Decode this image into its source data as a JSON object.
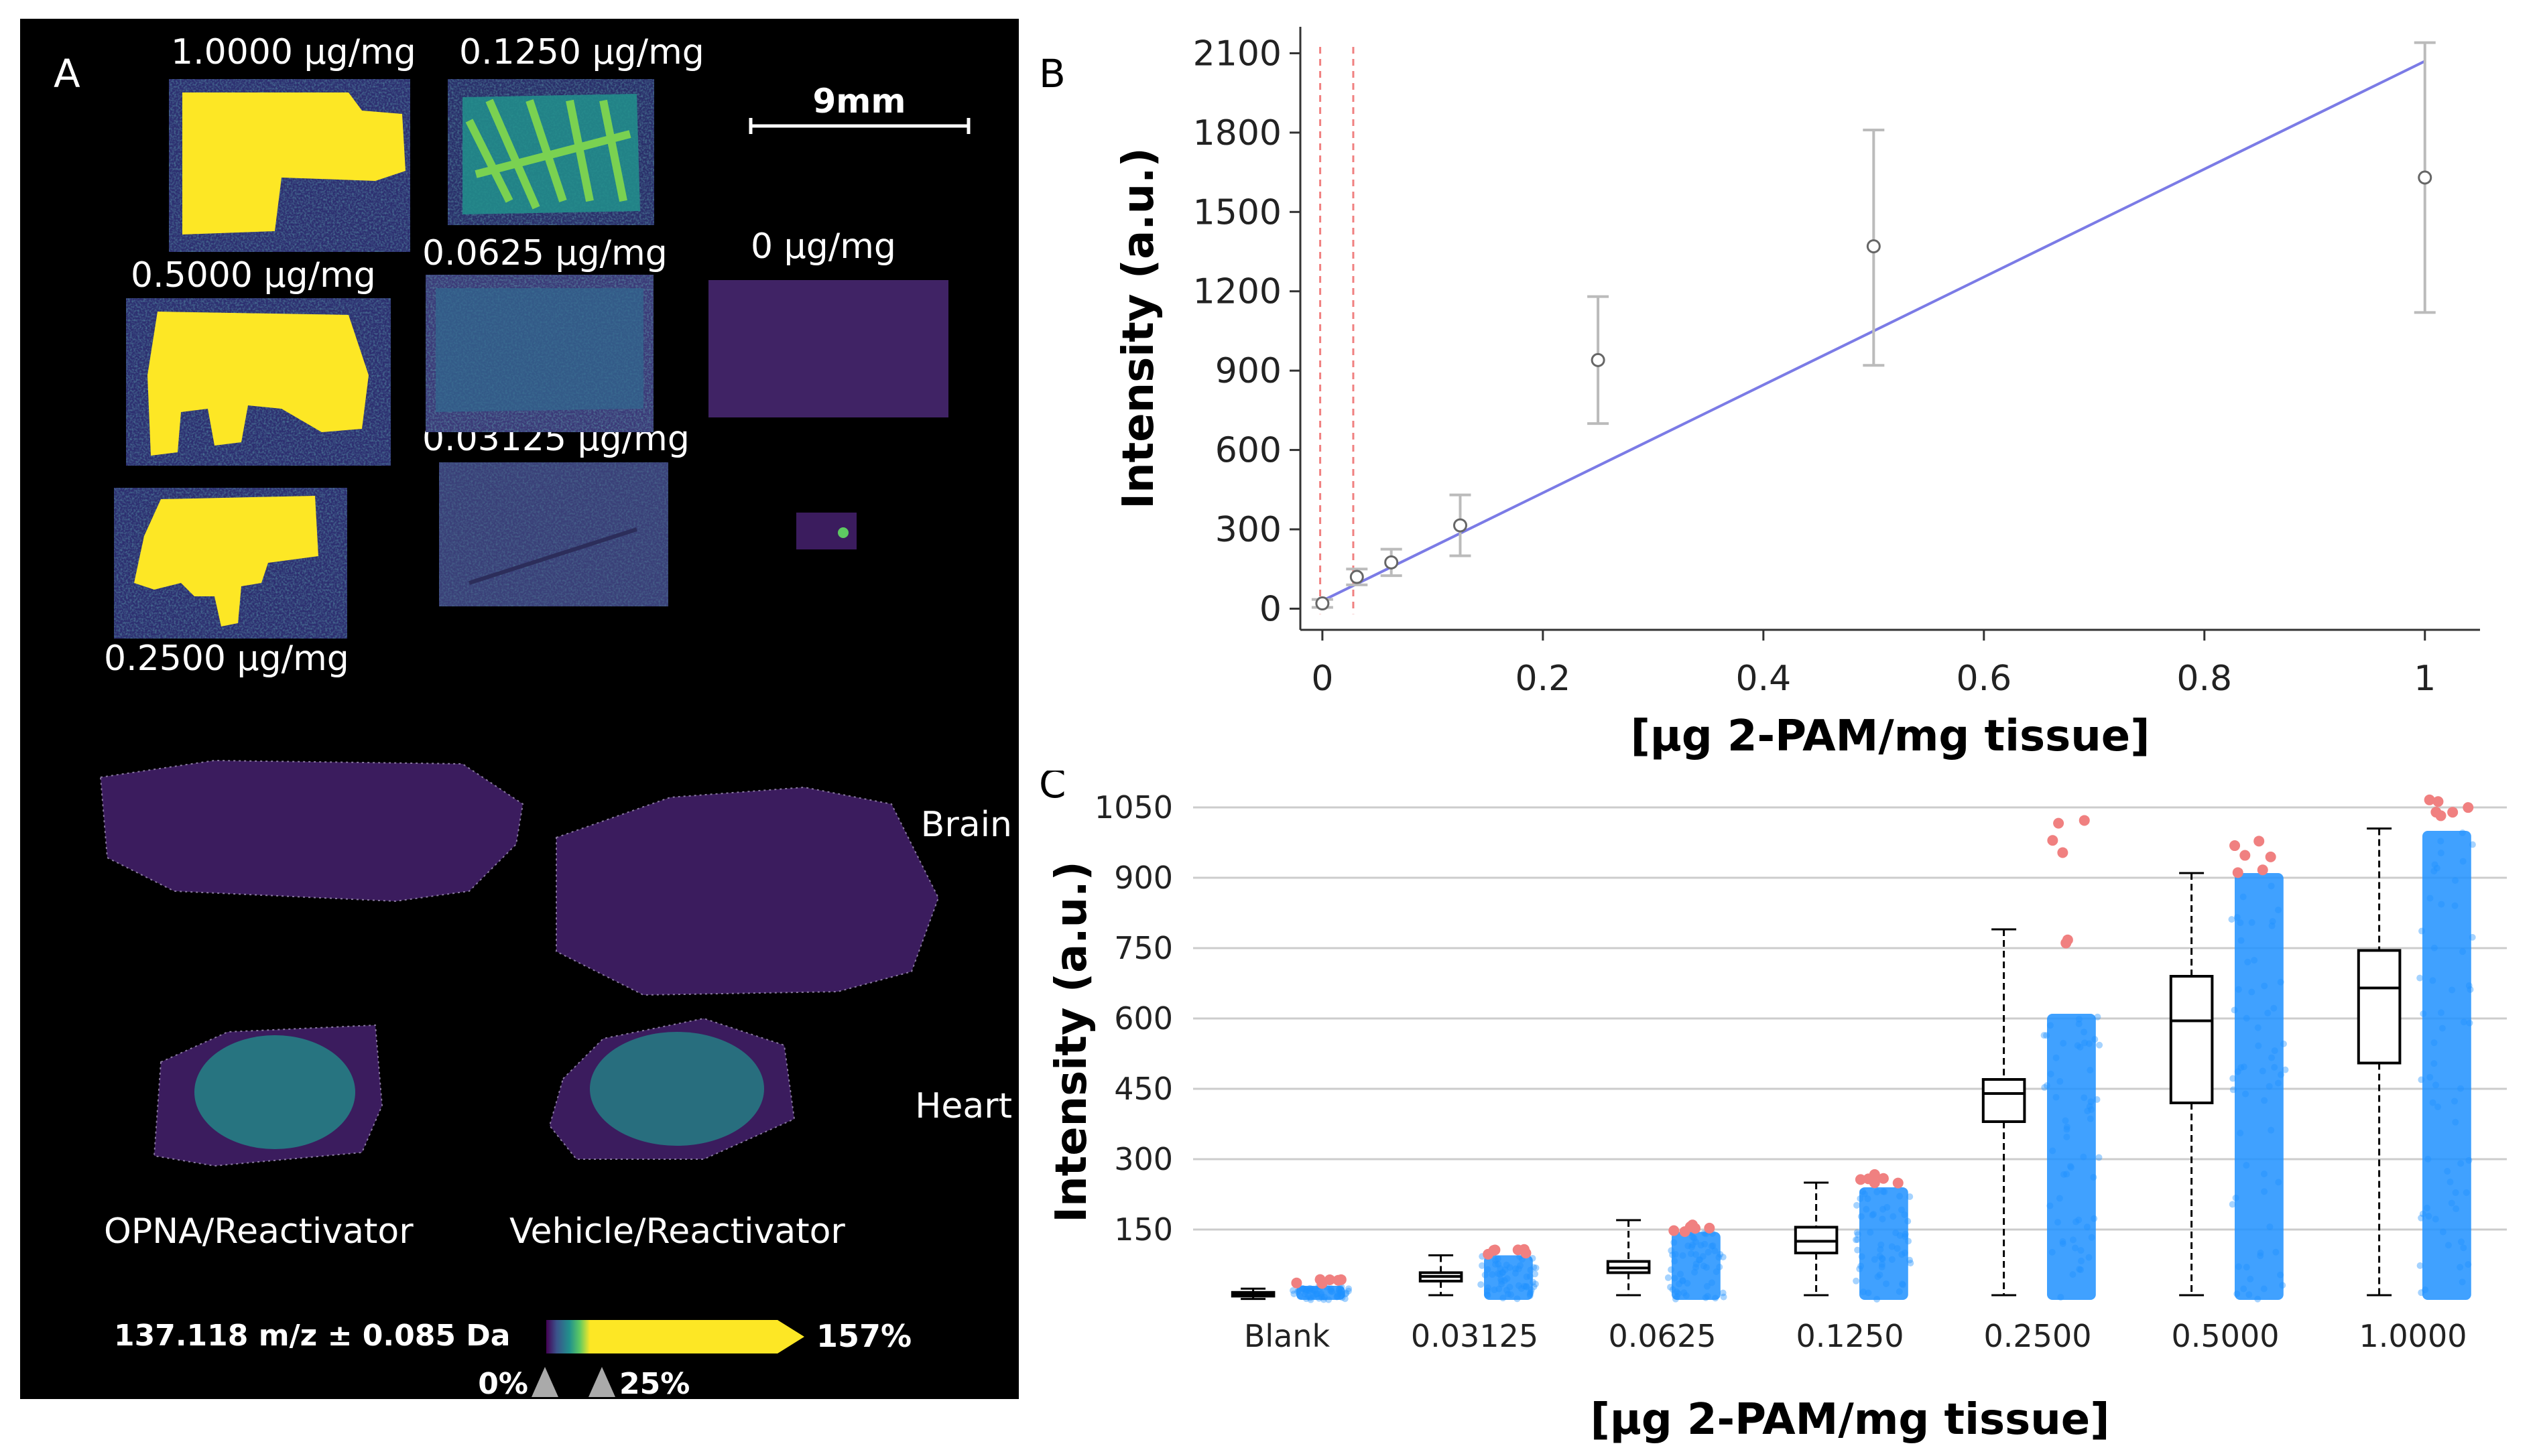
{
  "panel_a": {
    "letter": "A",
    "scale_bar_label": "9mm",
    "standards": [
      {
        "label": "1.0000 µg/mg"
      },
      {
        "label": "0.1250 µg/mg"
      },
      {
        "label": "0.5000 µg/mg"
      },
      {
        "label": "0.0625 µg/mg"
      },
      {
        "label": "0 µg/mg"
      },
      {
        "label": "0.03125 µg/mg"
      },
      {
        "label": "0.2500 µg/mg"
      }
    ],
    "tissue_labels": {
      "brain": "Brain",
      "heart": "Heart"
    },
    "group_labels": {
      "left": "OPNA/Reactivator",
      "right": "Vehicle/Reactivator"
    },
    "colorbar": {
      "mz_label": "137.118 m/z ± 0.085 Da",
      "max_label": "157%",
      "min_label": "0%",
      "mid_label": "25%"
    },
    "colors": {
      "background": "#000000",
      "yellow": "#fde725",
      "dark": "#3b1c5e",
      "teal": "#21918c",
      "green": "#5ec962"
    }
  },
  "chart_data": [
    {
      "panel": "B",
      "type": "scatter",
      "xlabel": "[µg 2-PAM/mg tissue]",
      "ylabel": "Intensity (a.u.)",
      "xlim": [
        -0.02,
        1.05
      ],
      "ylim": [
        -80,
        2200
      ],
      "x_ticks": [
        0,
        0.2,
        0.4,
        0.6,
        0.8,
        1
      ],
      "x_tick_labels": [
        "0",
        "0.2",
        "0.4",
        "0.6",
        "0.8",
        "1"
      ],
      "y_ticks": [
        0,
        300,
        600,
        900,
        1200,
        1500,
        1800,
        2100
      ],
      "y_tick_labels": [
        "0",
        "300",
        "600",
        "900",
        "1200",
        "1500",
        "1800",
        "2100"
      ],
      "points": [
        {
          "x": 0,
          "y": 20,
          "err_low": 5,
          "err_high": 35
        },
        {
          "x": 0.03125,
          "y": 120,
          "err_low": 90,
          "err_high": 150
        },
        {
          "x": 0.0625,
          "y": 175,
          "err_low": 125,
          "err_high": 225
        },
        {
          "x": 0.125,
          "y": 315,
          "err_low": 200,
          "err_high": 430
        },
        {
          "x": 0.25,
          "y": 940,
          "err_low": 700,
          "err_high": 1180
        },
        {
          "x": 0.5,
          "y": 1370,
          "err_low": 920,
          "err_high": 1810
        },
        {
          "x": 1.0,
          "y": 1630,
          "err_low": 1120,
          "err_high": 2140
        }
      ],
      "fit_line": {
        "x": [
          0,
          1.0
        ],
        "y": [
          30,
          2070
        ]
      },
      "reference_lines_x": [
        -0.002,
        0.028
      ],
      "colors": {
        "fit": "#7b7be6",
        "ref": "#f08080",
        "error": "#bbbbbb",
        "marker": "#666666"
      }
    },
    {
      "panel": "C",
      "type": "box",
      "xlabel": "[µg 2-PAM/mg tissue]",
      "ylabel": "Intensity (a.u.)",
      "ylim": [
        0,
        1100
      ],
      "y_ticks": [
        150,
        300,
        450,
        600,
        750,
        900,
        1050
      ],
      "y_tick_labels": [
        "150",
        "300",
        "450",
        "600",
        "750",
        "900",
        "1050"
      ],
      "categories": [
        "Blank",
        "0.03125",
        "0.0625",
        "0.1250",
        "0.2500",
        "0.5000",
        "1.0000"
      ],
      "boxes": [
        {
          "min": 2,
          "q1": 8,
          "median": 12,
          "q3": 16,
          "max": 24
        },
        {
          "min": 10,
          "q1": 40,
          "median": 50,
          "q3": 58,
          "max": 95
        },
        {
          "min": 10,
          "q1": 58,
          "median": 68,
          "q3": 82,
          "max": 170
        },
        {
          "min": 10,
          "q1": 100,
          "median": 125,
          "q3": 155,
          "max": 250
        },
        {
          "min": 10,
          "q1": 380,
          "median": 440,
          "q3": 470,
          "max": 790
        },
        {
          "min": 10,
          "q1": 420,
          "median": 595,
          "q3": 690,
          "max": 910
        },
        {
          "min": 10,
          "q1": 505,
          "median": 665,
          "q3": 745,
          "max": 1005
        }
      ],
      "scatter_ranges": [
        {
          "low": 0,
          "high": 30
        },
        {
          "low": 0,
          "high": 95
        },
        {
          "low": 0,
          "high": 145
        },
        {
          "low": 0,
          "high": 240
        },
        {
          "low": 0,
          "high": 610
        },
        {
          "low": 0,
          "high": 910
        },
        {
          "low": 0,
          "high": 1000
        }
      ],
      "outlier_tops": [
        50,
        110,
        180,
        270,
        1050,
        990,
        1070
      ],
      "colors": {
        "points": "#1e90ff",
        "outliers": "#f08080",
        "grid": "#cccccc",
        "box": "#000000"
      }
    }
  ],
  "panel_letters": {
    "b": "B",
    "c": "C"
  }
}
